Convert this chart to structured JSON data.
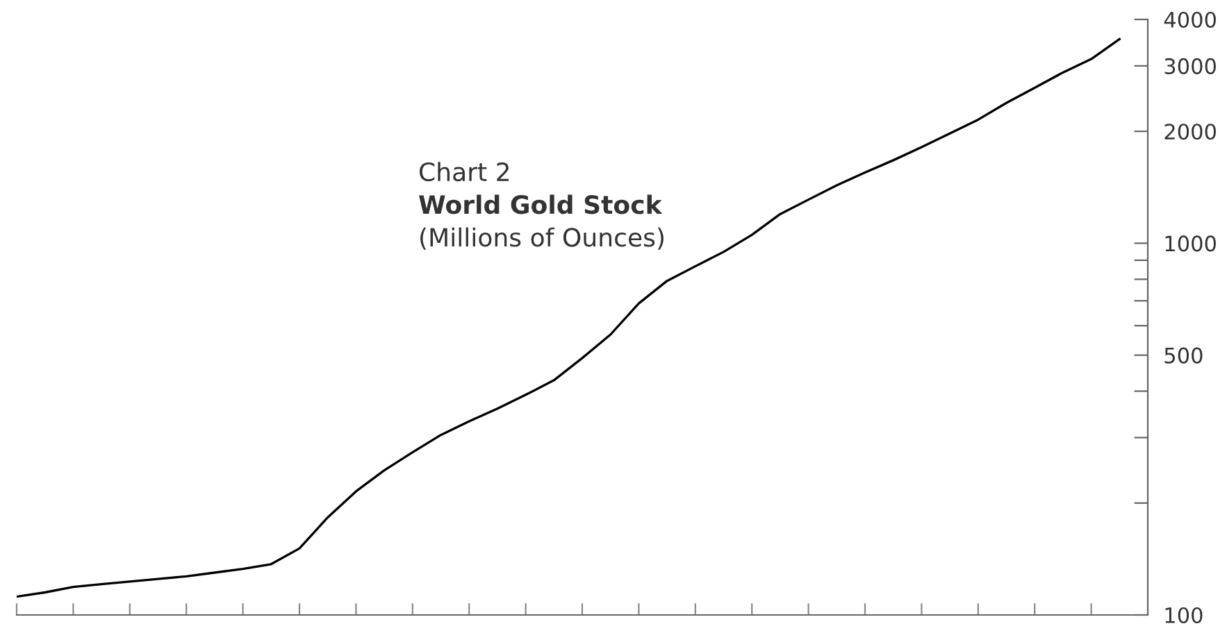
{
  "chart_data": {
    "type": "line",
    "title": "World Gold Stock",
    "subtitle": "(Millions of Ounces)",
    "annotations": [
      "Chart 2"
    ],
    "categories": [
      null,
      null,
      null,
      null,
      null,
      null,
      null,
      null,
      null,
      null,
      null,
      null,
      null,
      null,
      null,
      null,
      null,
      null,
      null,
      null,
      null,
      null,
      null,
      null,
      null,
      null,
      null,
      null,
      null,
      null,
      null,
      null,
      null,
      null,
      null,
      null,
      null,
      null,
      null,
      null
    ],
    "series": [
      {
        "color": "#000000",
        "values": [
          112,
          115,
          119,
          121,
          123,
          125,
          127,
          130,
          133,
          137,
          151,
          183,
          215,
          245,
          274,
          305,
          332,
          359,
          391,
          428,
          491,
          568,
          689,
          792,
          867,
          948,
          1053,
          1198,
          1310,
          1432,
          1550,
          1672,
          1813,
          1975,
          2150,
          2385,
          2620,
          2880,
          3130,
          3540
        ]
      }
    ],
    "log": "y",
    "ylim": [
      100,
      4000
    ],
    "yticks": [
      100,
      {
        "value": 200,
        "label": null
      },
      {
        "value": 300,
        "label": null
      },
      {
        "value": 400,
        "label": null
      },
      500,
      {
        "value": 600,
        "label": null
      },
      {
        "value": 700,
        "label": null
      },
      {
        "value": 800,
        "label": null
      },
      {
        "value": 900,
        "label": null
      },
      1000,
      2000,
      3000,
      4000
    ],
    "tick_labels": "y",
    "grid": false,
    "legend": false,
    "line_style": "solid",
    "marker": "none"
  }
}
